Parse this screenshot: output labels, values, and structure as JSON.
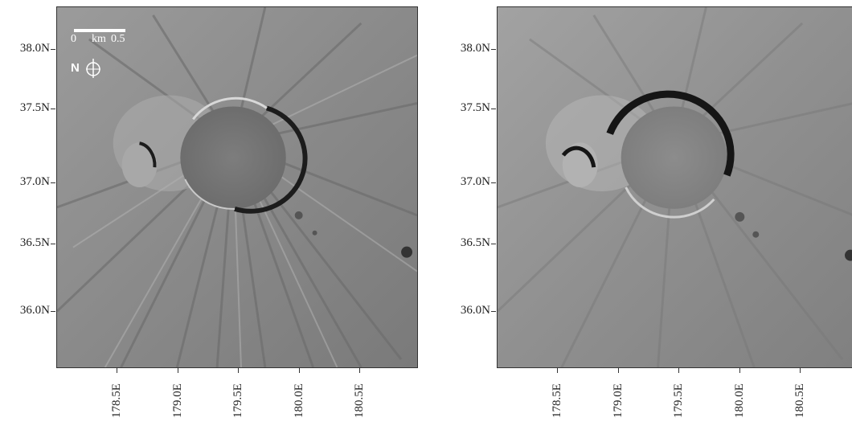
{
  "panels": [
    {
      "id": "left",
      "y_ticks": [
        "38.0N",
        "37.5N",
        "37.0N",
        "36.5N",
        "36.0N"
      ],
      "x_ticks": [
        "178.5E",
        "179.0E",
        "179.5E",
        "180.0E",
        "180.5E"
      ],
      "scale_bar": {
        "start": "0",
        "unit": "km",
        "end": "0.5"
      },
      "north_arrow": {
        "letter": "N",
        "icon": "compass-icon"
      },
      "colors": {
        "terrain": "#8a8a8a",
        "crater_shadow": "#1c1c1c",
        "rim": "#d8d8d8"
      }
    },
    {
      "id": "right",
      "y_ticks": [
        "38.0N",
        "37.5N",
        "37.0N",
        "36.5N",
        "36.0N"
      ],
      "x_ticks": [
        "178.5E",
        "179.0E",
        "179.5E",
        "180.0E",
        "180.5E"
      ],
      "colors": {
        "terrain": "#8f8f8f",
        "crater_shadow": "#151515",
        "rim": "#cfcfcf"
      }
    }
  ]
}
